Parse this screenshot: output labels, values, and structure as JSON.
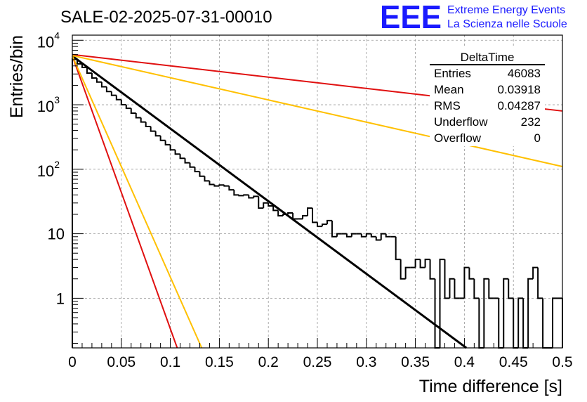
{
  "title": "SALE-02-2025-07-31-00010",
  "logo": {
    "mark": "EEE",
    "line1": "Extreme Energy Events",
    "line2": "La Scienza nelle Scuole",
    "color": "#1a1aff"
  },
  "colors": {
    "histogram": "#000000",
    "fit_black": "#000000",
    "red": "#e01010",
    "orange": "#ffc000",
    "grid": "#999999"
  },
  "stats_box": {
    "name": "DeltaTime",
    "rows": [
      {
        "label": "Entries",
        "value": "46083"
      },
      {
        "label": "Mean",
        "value": "0.03918"
      },
      {
        "label": "RMS",
        "value": "0.04287"
      },
      {
        "label": "Underflow",
        "value": "232"
      },
      {
        "label": "Overflow",
        "value": "0"
      }
    ]
  },
  "chart_data": {
    "type": "line",
    "title": "SALE-02-2025-07-31-00010",
    "xlabel": "Time difference [s]",
    "ylabel": "Entries/bin",
    "xlim": [
      0,
      0.5
    ],
    "ylim": [
      0.17,
      12000
    ],
    "log_y": true,
    "grid": true,
    "x_ticks": [
      "0",
      "0.05",
      "0.1",
      "0.15",
      "0.2",
      "0.25",
      "0.3",
      "0.35",
      "0.4",
      "0.45",
      "0.5"
    ],
    "y_ticks": [
      {
        "value": 1,
        "label": "1"
      },
      {
        "value": 10,
        "label": "10"
      },
      {
        "value": 100,
        "label": "10",
        "exp": "2"
      },
      {
        "value": 1000,
        "label": "10",
        "exp": "3"
      },
      {
        "value": 10000,
        "label": "10",
        "exp": "4"
      }
    ],
    "histogram": {
      "bin_width": 0.005,
      "values": [
        5200,
        4300,
        3800,
        3100,
        2600,
        2250,
        1900,
        1600,
        1400,
        1200,
        1000,
        880,
        740,
        630,
        540,
        460,
        390,
        330,
        280,
        240,
        200,
        172,
        148,
        126,
        108,
        92,
        78,
        66,
        58,
        55,
        57,
        55,
        48,
        40,
        39,
        40,
        36,
        38,
        25,
        30,
        27,
        23,
        19,
        20,
        21,
        17,
        17,
        19,
        25,
        15,
        13,
        14,
        16,
        9,
        10,
        10,
        9,
        10,
        10,
        9,
        10,
        9,
        8,
        10,
        9,
        9,
        4,
        2,
        3,
        3,
        4,
        3,
        4,
        2,
        0,
        4,
        1,
        2,
        1,
        1,
        3,
        2,
        1,
        0,
        2,
        1,
        1,
        0,
        2,
        1,
        0,
        1,
        0,
        2,
        3,
        1,
        0,
        0,
        1,
        1
      ]
    },
    "series": [
      {
        "color": "black",
        "points": [
          [
            0,
            5700
          ],
          [
            0.402,
            0.17
          ]
        ]
      },
      {
        "color": "red",
        "points": [
          [
            0,
            6000
          ],
          [
            0.5,
            800
          ]
        ]
      },
      {
        "color": "orange",
        "points": [
          [
            0,
            5800
          ],
          [
            0.5,
            110
          ]
        ]
      },
      {
        "color": "red",
        "points": [
          [
            0,
            5700
          ],
          [
            0.107,
            0.17
          ]
        ]
      },
      {
        "color": "orange",
        "points": [
          [
            0,
            5700
          ],
          [
            0.132,
            0.17
          ]
        ]
      }
    ]
  }
}
